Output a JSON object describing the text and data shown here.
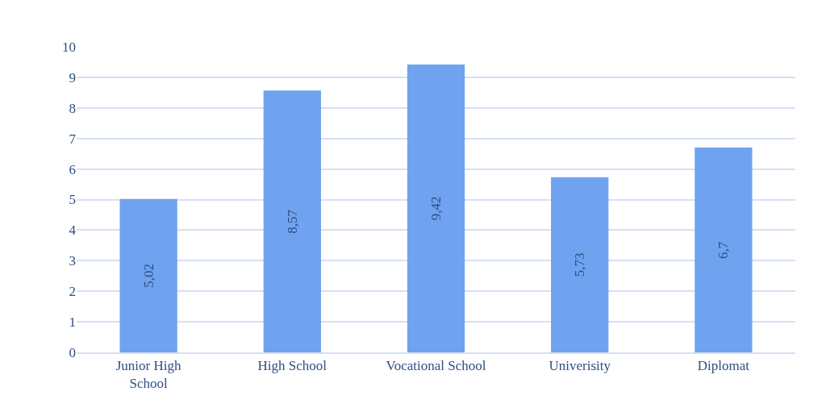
{
  "chart_data": {
    "type": "bar",
    "categories": [
      "Junior High School",
      "High School",
      "Vocational School",
      "Univerisity",
      "Diplomat"
    ],
    "values": [
      5.02,
      8.57,
      9.42,
      5.73,
      6.7
    ],
    "value_labels": [
      "5,02",
      "8,57",
      "9,42",
      "5,73",
      "6,7"
    ],
    "color": "#6fa3f0",
    "ylim": [
      0,
      10
    ],
    "yticks": [
      0,
      1,
      2,
      3,
      4,
      5,
      6,
      7,
      8,
      9,
      10
    ],
    "grid": "y"
  }
}
